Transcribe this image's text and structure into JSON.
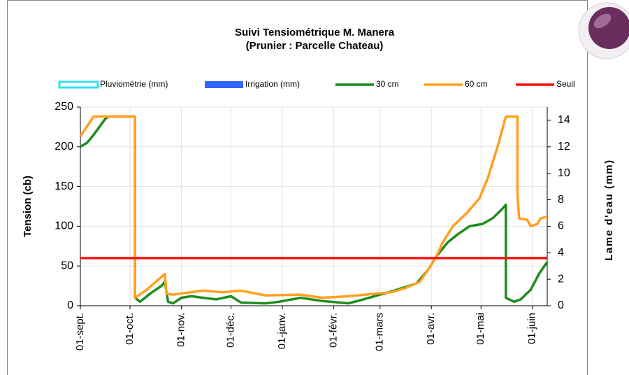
{
  "chart_data": {
    "type": "line",
    "title": "Suivi Tensiométrique M. Manera",
    "subtitle": "(Prunier : Parcelle Chateau)",
    "y_label": "Tension (cb)",
    "y2_label": "Lame d'eau (mm)",
    "xlim": [
      0,
      282
    ],
    "xticks": [
      {
        "value": 0,
        "label": "01-sept."
      },
      {
        "value": 30,
        "label": "01-oct."
      },
      {
        "value": 61,
        "label": "01-nov."
      },
      {
        "value": 91,
        "label": "01-déc."
      },
      {
        "value": 122,
        "label": "01-janv."
      },
      {
        "value": 153,
        "label": "01-févr."
      },
      {
        "value": 181,
        "label": "01-mars"
      },
      {
        "value": 212,
        "label": "01-avr."
      },
      {
        "value": 242,
        "label": "01-mai"
      },
      {
        "value": 273,
        "label": "01-juin"
      }
    ],
    "ylim": [
      0,
      250
    ],
    "yticks": [
      0,
      50,
      100,
      150,
      200,
      250
    ],
    "y2lim": [
      0,
      15
    ],
    "y2ticks": [
      0,
      2,
      4,
      6,
      8,
      10,
      12,
      14
    ],
    "grid": true,
    "series": [
      {
        "name": "Pluviométrie (mm)",
        "color": "#33e0f0",
        "style": "bar-outline",
        "axis": "y2",
        "x": [],
        "values": []
      },
      {
        "name": "Irrigation (mm)",
        "color": "#3366ff",
        "style": "bar",
        "axis": "y2",
        "x": [],
        "values": []
      },
      {
        "name": "30 cm",
        "color": "#1e8c1e",
        "style": "line",
        "x": [
          0,
          4,
          8,
          15,
          17,
          33,
          33,
          36,
          42,
          49,
          51,
          53,
          56,
          61,
          67,
          74,
          82,
          91,
          97,
          112,
          120,
          133,
          146,
          162,
          171,
          181,
          188,
          203,
          210,
          215,
          222,
          228,
          235,
          243,
          249,
          254,
          257,
          257,
          262,
          266,
          272,
          277,
          281,
          282
        ],
        "values": [
          200,
          205,
          215,
          235,
          238,
          238,
          10,
          5,
          15,
          25,
          30,
          5,
          3,
          10,
          12,
          10,
          8,
          12,
          4,
          3,
          5,
          10,
          6,
          3,
          8,
          14,
          18,
          28,
          45,
          62,
          80,
          90,
          100,
          103,
          110,
          120,
          127,
          10,
          5,
          8,
          20,
          40,
          52,
          55
        ]
      },
      {
        "name": "60 cm",
        "color": "#ffa020",
        "style": "line",
        "x": [
          0,
          8,
          33,
          33,
          40,
          51,
          52,
          56,
          74,
          86,
          97,
          112,
          133,
          146,
          162,
          188,
          196,
          205,
          210,
          215,
          219,
          225,
          234,
          241,
          246,
          252,
          257,
          264,
          264,
          265,
          270,
          272,
          276,
          278,
          282
        ],
        "values": [
          213,
          238,
          238,
          10,
          20,
          40,
          15,
          14,
          19,
          17,
          19,
          13,
          14,
          10,
          12,
          17,
          22,
          30,
          45,
          62,
          80,
          100,
          118,
          135,
          160,
          200,
          238,
          238,
          140,
          110,
          108,
          100,
          103,
          110,
          112
        ]
      },
      {
        "name": "Seuil",
        "color": "#ff1010",
        "style": "line",
        "x": [
          0,
          282
        ],
        "values": [
          60,
          60
        ]
      }
    ]
  }
}
